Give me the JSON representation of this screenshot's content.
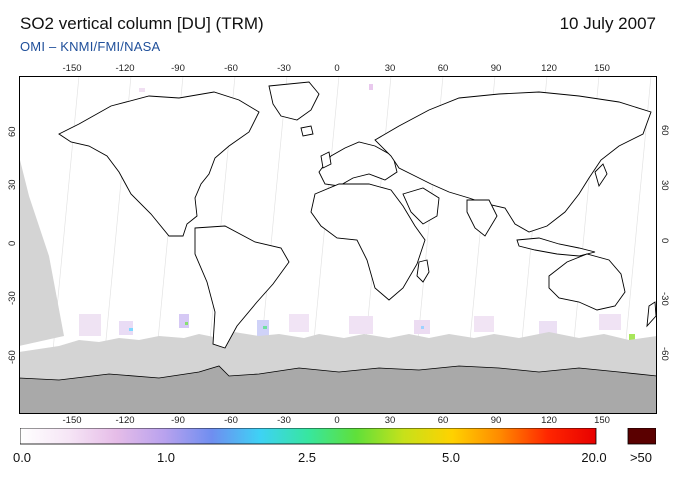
{
  "header": {
    "title": "SO2 vertical column [DU] (TRM)",
    "date": "10 July 2007",
    "credit": "OMI  –  KNMI/FMI/NASA"
  },
  "map": {
    "projection": "equirectangular",
    "lon_range": [
      -180,
      180
    ],
    "lat_range": [
      -90,
      90
    ],
    "lon_ticks": [
      "-150",
      "-120",
      "-90",
      "-60",
      "-30",
      "0",
      "30",
      "60",
      "90",
      "120",
      "150"
    ],
    "lat_ticks": [
      "60",
      "30",
      "0",
      "-30",
      "-60"
    ],
    "colors": {
      "frame": "#000000",
      "no_data": "#d4d4d4",
      "antarctica": "#a9a9a9",
      "coastline": "#000000"
    }
  },
  "colorbar": {
    "labels": [
      "0.0",
      "1.0",
      "2.5",
      "5.0",
      "20.0",
      ">50"
    ],
    "gradient": [
      "#ffffff",
      "#f6e6f6",
      "#e6bde8",
      "#b9a2ee",
      "#6f8ef0",
      "#3ed2f5",
      "#37e6a0",
      "#5fe03a",
      "#c7e11a",
      "#ffd200",
      "#ff8a00",
      "#ff2600",
      "#e80000"
    ],
    "overflow_color": "#5a0000"
  }
}
